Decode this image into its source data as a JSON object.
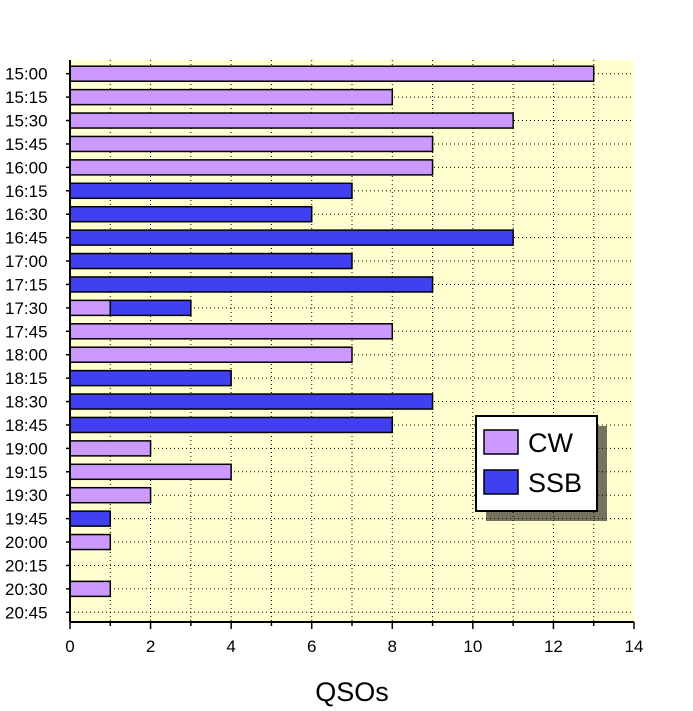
{
  "chart_data": {
    "type": "bar",
    "orientation": "horizontal",
    "stacked": true,
    "categories": [
      "15:00",
      "15:15",
      "15:30",
      "15:45",
      "16:00",
      "16:15",
      "16:30",
      "16:45",
      "17:00",
      "17:15",
      "17:30",
      "17:45",
      "18:00",
      "18:15",
      "18:30",
      "18:45",
      "19:00",
      "19:15",
      "19:30",
      "19:45",
      "20:00",
      "20:15",
      "20:30",
      "20:45"
    ],
    "series": [
      {
        "name": "CW",
        "color": "#cc99ff",
        "values": [
          13,
          8,
          11,
          9,
          9,
          0,
          0,
          0,
          0,
          0,
          1,
          8,
          7,
          0,
          0,
          0,
          2,
          4,
          2,
          0,
          1,
          0,
          1,
          0
        ]
      },
      {
        "name": "SSB",
        "color": "#4040f0",
        "values": [
          0,
          0,
          0,
          0,
          0,
          7,
          6,
          11,
          7,
          9,
          2,
          0,
          0,
          4,
          9,
          8,
          0,
          0,
          0,
          1,
          0,
          0,
          0,
          0
        ]
      }
    ],
    "title": "",
    "xlabel": "QSOs",
    "ylabel": "",
    "xlim": [
      0,
      14
    ],
    "xticks": [
      "0",
      "2",
      "4",
      "6",
      "8",
      "10",
      "12",
      "14"
    ],
    "grid": true,
    "plot_background": "#ffffd0",
    "legend_position": "lower-right"
  }
}
